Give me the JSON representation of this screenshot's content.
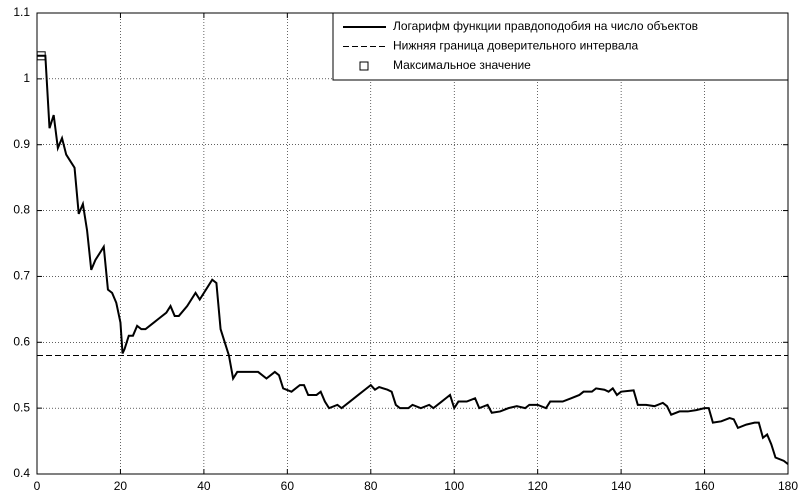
{
  "chart_data": {
    "type": "line",
    "xlim": [
      0,
      180
    ],
    "xticks": [
      0,
      20,
      40,
      60,
      80,
      100,
      120,
      140,
      160,
      180
    ],
    "ylim": [
      0.4,
      1.1
    ],
    "yticks": [
      0.4,
      0.5,
      0.6,
      0.7,
      0.8,
      0.9,
      1,
      1.1
    ],
    "grid": true,
    "legend": "upper right",
    "series": [
      {
        "name": "Логарифм функции правдоподобия на число объектов",
        "color": "#000000",
        "style": "solid",
        "x": [
          0,
          1,
          2,
          3,
          4,
          5,
          6,
          7,
          8,
          9,
          10,
          11,
          12,
          13,
          14,
          15,
          16,
          17,
          18,
          19,
          20,
          20.5,
          21,
          22,
          23,
          24,
          25,
          26,
          28,
          29,
          31,
          32,
          33,
          34,
          36,
          38,
          39,
          41,
          42,
          43,
          44,
          46,
          47,
          48,
          50,
          51,
          53,
          55,
          57,
          58,
          59,
          61,
          63,
          64,
          65,
          67,
          68,
          69,
          70,
          72,
          73,
          75,
          77,
          79,
          80,
          81,
          82,
          84,
          85,
          86,
          87,
          89,
          90,
          92,
          94,
          95,
          97,
          98,
          99,
          100,
          101,
          103,
          105,
          106,
          108,
          109,
          111,
          113,
          115,
          117,
          118,
          120,
          122,
          123,
          126,
          128,
          130,
          131,
          133,
          134,
          136,
          137,
          138,
          139,
          140,
          143,
          144,
          146,
          148,
          150,
          151,
          152,
          154,
          156,
          158,
          160,
          161,
          162,
          164,
          166,
          167,
          168,
          170,
          172,
          173,
          174,
          175,
          176,
          177,
          179,
          180
        ],
        "values": [
          1.035,
          1.035,
          1.035,
          0.925,
          0.945,
          0.895,
          0.91,
          0.885,
          0.875,
          0.865,
          0.795,
          0.81,
          0.77,
          0.71,
          0.725,
          0.735,
          0.745,
          0.68,
          0.675,
          0.66,
          0.63,
          0.583,
          0.59,
          0.61,
          0.61,
          0.625,
          0.62,
          0.62,
          0.63,
          0.635,
          0.645,
          0.655,
          0.64,
          0.64,
          0.655,
          0.675,
          0.665,
          0.685,
          0.695,
          0.69,
          0.62,
          0.58,
          0.545,
          0.555,
          0.555,
          0.555,
          0.555,
          0.545,
          0.555,
          0.55,
          0.53,
          0.525,
          0.535,
          0.535,
          0.52,
          0.52,
          0.525,
          0.51,
          0.5,
          0.505,
          0.5,
          0.51,
          0.52,
          0.53,
          0.535,
          0.528,
          0.532,
          0.528,
          0.525,
          0.505,
          0.5,
          0.5,
          0.505,
          0.5,
          0.505,
          0.5,
          0.51,
          0.515,
          0.52,
          0.5,
          0.51,
          0.51,
          0.515,
          0.5,
          0.505,
          0.493,
          0.495,
          0.5,
          0.503,
          0.5,
          0.505,
          0.505,
          0.5,
          0.51,
          0.51,
          0.515,
          0.52,
          0.525,
          0.525,
          0.53,
          0.528,
          0.525,
          0.53,
          0.52,
          0.525,
          0.527,
          0.505,
          0.505,
          0.503,
          0.508,
          0.503,
          0.49,
          0.495,
          0.495,
          0.497,
          0.5,
          0.5,
          0.478,
          0.48,
          0.485,
          0.483,
          0.47,
          0.475,
          0.478,
          0.478,
          0.455,
          0.46,
          0.445,
          0.425,
          0.42,
          0.415
        ]
      },
      {
        "name": "Нижняя граница доверительного интервала",
        "color": "#000000",
        "style": "dashed",
        "x": [
          0,
          180
        ],
        "values": [
          0.58,
          0.58
        ]
      },
      {
        "name": "Максимальное значение",
        "color": "#000000",
        "style": "marker",
        "x": [
          1
        ],
        "values": [
          1.035
        ]
      }
    ]
  }
}
